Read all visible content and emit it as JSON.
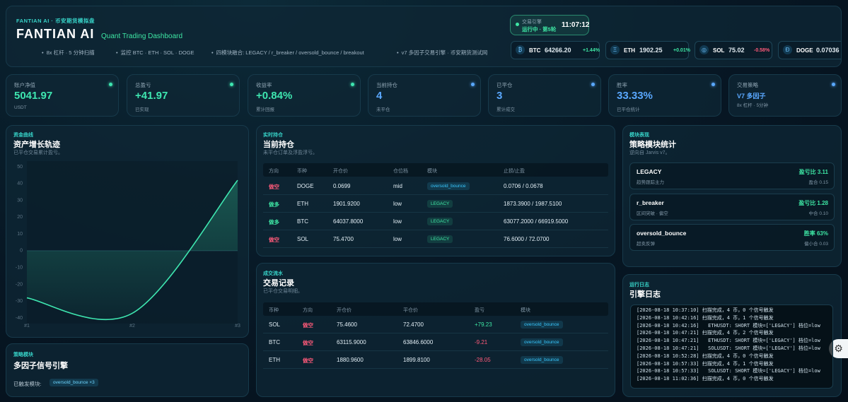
{
  "header": {
    "brand": "FANTIAN AI · 币安期货模拟盘",
    "title": "FANTIAN AI",
    "subtitle": "Quant Trading Dashboard",
    "features": [
      "8x 杠杆 · 5 分钟扫描",
      "监控 BTC · ETH · SOL · DOGE",
      "四模块融合: LEGACY / r_breaker / oversold_bounce / breakout",
      "v7 多因子交易引擎 · 币安期货测试网"
    ],
    "engine": {
      "label": "交易引擎",
      "status": "运行中 · 第5轮",
      "time": "11:07:12"
    },
    "tickers": [
      {
        "icon": "₿",
        "symbol": "BTC",
        "price": "64266.20",
        "change": "+1.44%"
      },
      {
        "icon": "Ξ",
        "symbol": "ETH",
        "price": "1902.25",
        "change": "+0.01%"
      },
      {
        "icon": "◎",
        "symbol": "SOL",
        "price": "75.02",
        "change": "-0.58%"
      },
      {
        "icon": "Đ",
        "symbol": "DOGE",
        "price": "0.07036",
        "change": ""
      }
    ]
  },
  "kpis": [
    {
      "label": "账户净值",
      "value": "5041.97",
      "sub": "USDT",
      "color": "#3ee6b0"
    },
    {
      "label": "总盈亏",
      "value": "+41.97",
      "sub": "已实现",
      "color": "#3ee6b0"
    },
    {
      "label": "收益率",
      "value": "+0.84%",
      "sub": "累计回报",
      "color": "#3ee6b0"
    },
    {
      "label": "当前持仓",
      "value": "4",
      "sub": "未平仓",
      "color": "#5aa8ff"
    },
    {
      "label": "已平仓",
      "value": "3",
      "sub": "累计成交",
      "color": "#5aa8ff"
    },
    {
      "label": "胜率",
      "value": "33.33%",
      "sub": "已平仓统计",
      "color": "#5aa8ff"
    },
    {
      "label": "交易策略",
      "value": "V7 多因子",
      "sub": "8x 杠杆 · 5分钟",
      "color": "#5aa8ff",
      "small": true
    }
  ],
  "chart_data": {
    "type": "line",
    "kicker": "资金曲线",
    "title": "资产增长轨迹",
    "subtitle": "已平仓交易累计盈亏。",
    "categories": [
      "#1",
      "#2",
      "#3"
    ],
    "values": [
      -28.05,
      -37.26,
      41.97
    ],
    "color": "#3ee6b0",
    "ylim": [
      -40,
      50
    ],
    "yticks": [
      50,
      40,
      30,
      20,
      10,
      0,
      -10,
      -20,
      -30,
      -40
    ],
    "grid": false
  },
  "signal": {
    "kicker": "策略模块",
    "title": "多因子信号引擎",
    "label": "已触发模块:",
    "badge": "oversold_bounce ×3"
  },
  "side_colors": {
    "做空": "#ff5a7a",
    "做多": "#3ee6a4"
  },
  "badge_colors": {
    "oversold_bounce": "#38c8ff",
    "LEGACY": "#3ee6a4"
  },
  "positions": {
    "kicker": "实时持仓",
    "title": "当前持仓",
    "subtitle": "未平仓订单及浮盈浮亏。",
    "columns": [
      "方向",
      "币种",
      "开仓价",
      "仓位档",
      "模块",
      "止损/止盈"
    ],
    "rows": [
      [
        "做空",
        "DOGE",
        "0.0699",
        "mid",
        "oversold_bounce",
        "0.0706 / 0.0678"
      ],
      [
        "做多",
        "ETH",
        "1901.9200",
        "low",
        "LEGACY",
        "1873.3900 / 1987.5100"
      ],
      [
        "做多",
        "BTC",
        "64037.8000",
        "low",
        "LEGACY",
        "63077.2000 / 66919.5000"
      ],
      [
        "做空",
        "SOL",
        "75.4700",
        "low",
        "LEGACY",
        "76.6000 / 72.0700"
      ]
    ]
  },
  "trades": {
    "kicker": "成交流水",
    "title": "交易记录",
    "subtitle": "已平仓交易明细。",
    "columns": [
      "币种",
      "方向",
      "开仓价",
      "平仓价",
      "盈亏",
      "模块"
    ],
    "rows": [
      [
        "SOL",
        "做空",
        "75.4600",
        "72.4700",
        "+79.23",
        "oversold_bounce"
      ],
      [
        "BTC",
        "做空",
        "63115.9000",
        "63846.6000",
        "-9.21",
        "oversold_bounce"
      ],
      [
        "ETH",
        "做空",
        "1880.9600",
        "1899.8100",
        "-28.05",
        "oversold_bounce"
      ]
    ]
  },
  "modules": {
    "kicker": "模块表现",
    "title": "策略模块统计",
    "subtitle": "逆向自 Jarvis v7。",
    "items": [
      {
        "name": "LEGACY",
        "desc": "趋势跟踪主力",
        "metric": "盈亏比 3.11",
        "sub": "盈合 0.15"
      },
      {
        "name": "r_breaker",
        "desc": "区间突破 · 偏空",
        "metric": "盈亏比 1.28",
        "sub": "中合 0.10"
      },
      {
        "name": "oversold_bounce",
        "desc": "超卖反弹",
        "metric": "胜率 63%",
        "sub": "偏小合 0.03"
      }
    ]
  },
  "log": {
    "kicker": "运行日志",
    "title": "引擎日志",
    "lines": [
      "[2026-08-18 10:37:10] 扫描完成，4 币，0 个信号触发",
      "[2026-08-18 10:42:16] 扫描完成，4 币，1 个信号触发",
      "[2026-08-18 10:42:16]   ETHUSDT: SHORT 模块=['LEGACY'] 档位=low",
      "[2026-08-18 10:47:21] 扫描完成，4 币，2 个信号触发",
      "[2026-08-18 10:47:21]   ETHUSDT: SHORT 模块=['LEGACY'] 档位=low",
      "[2026-08-18 10:47:21]   SOLUSDT: SHORT 模块=['LEGACY'] 档位=low",
      "[2026-08-18 10:52:28] 扫描完成，4 币，0 个信号触发",
      "[2026-08-18 10:57:33] 扫描完成，4 币，1 个信号触发",
      "[2026-08-18 10:57:33]   SOLUSDT: SHORT 模块=['LEGACY'] 档位=low",
      "[2026-08-18 11:02:36] 扫描完成，4 币，0 个信号触发"
    ]
  }
}
